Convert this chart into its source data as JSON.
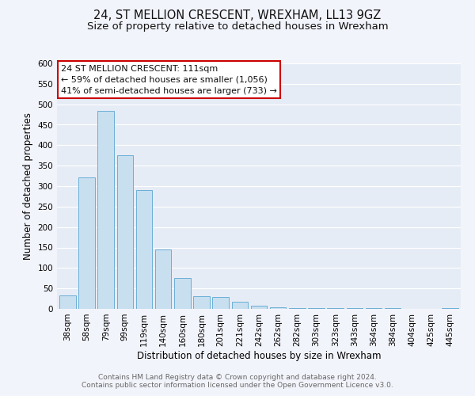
{
  "title": "24, ST MELLION CRESCENT, WREXHAM, LL13 9GZ",
  "subtitle": "Size of property relative to detached houses in Wrexham",
  "xlabel": "Distribution of detached houses by size in Wrexham",
  "ylabel": "Number of detached properties",
  "bar_labels": [
    "38sqm",
    "58sqm",
    "79sqm",
    "99sqm",
    "119sqm",
    "140sqm",
    "160sqm",
    "180sqm",
    "201sqm",
    "221sqm",
    "242sqm",
    "262sqm",
    "282sqm",
    "303sqm",
    "323sqm",
    "343sqm",
    "364sqm",
    "384sqm",
    "404sqm",
    "425sqm",
    "445sqm"
  ],
  "bar_values": [
    32,
    322,
    483,
    375,
    291,
    145,
    75,
    31,
    29,
    17,
    8,
    3,
    2,
    1,
    1,
    1,
    1,
    1,
    0,
    0,
    2
  ],
  "bar_color": "#c8dff0",
  "bar_edge_color": "#6aafd6",
  "background_color": "#f2f4fb",
  "plot_bg_color": "#e6ecf5",
  "annotation_text_line1": "24 ST MELLION CRESCENT: 111sqm",
  "annotation_text_line2": "← 59% of detached houses are smaller (1,056)",
  "annotation_text_line3": "41% of semi-detached houses are larger (733) →",
  "annotation_box_facecolor": "#ffffff",
  "annotation_box_edgecolor": "#cc0000",
  "ylim": [
    0,
    600
  ],
  "yticks": [
    0,
    50,
    100,
    150,
    200,
    250,
    300,
    350,
    400,
    450,
    500,
    550,
    600
  ],
  "footer_line1": "Contains HM Land Registry data © Crown copyright and database right 2024.",
  "footer_line2": "Contains public sector information licensed under the Open Government Licence v3.0.",
  "title_fontsize": 10.5,
  "subtitle_fontsize": 9.5,
  "axis_label_fontsize": 8.5,
  "tick_fontsize": 7.5,
  "annotation_fontsize": 8,
  "footer_fontsize": 6.5
}
